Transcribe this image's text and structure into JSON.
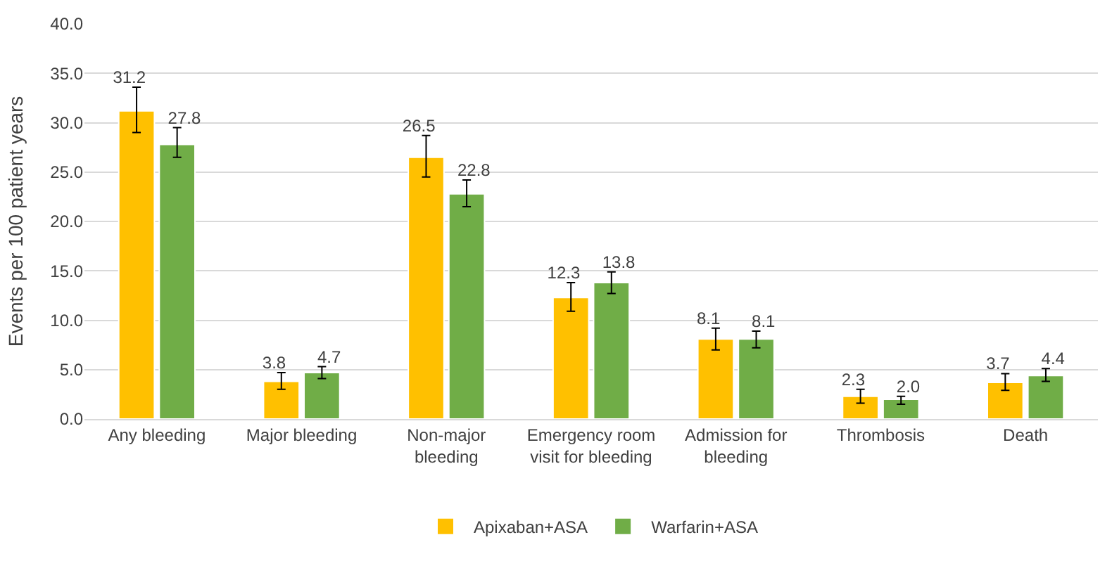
{
  "chart_data": {
    "type": "bar",
    "ylabel": "Events per 100 patient years",
    "categories": [
      "Any bleeding",
      "Major bleeding",
      "Non-major\nbleeding",
      "Emergency room\nvisit for bleeding",
      "Admission for\nbleeding",
      "Thrombosis",
      "Death"
    ],
    "series": [
      {
        "name": "Apixaban+ASA",
        "color": "#ffc000",
        "values": [
          31.2,
          3.8,
          26.5,
          12.3,
          8.1,
          2.3,
          3.7
        ],
        "value_labels": [
          "31.2",
          "3.8",
          "26.5",
          "12.3",
          "8.1",
          "2.3",
          "3.7"
        ],
        "errors": [
          [
            29.0,
            33.6
          ],
          [
            3.0,
            4.7
          ],
          [
            24.5,
            28.7
          ],
          [
            10.9,
            13.8
          ],
          [
            7.0,
            9.2
          ],
          [
            1.6,
            3.0
          ],
          [
            2.9,
            4.6
          ]
        ]
      },
      {
        "name": "Warfarin+ASA",
        "color": "#70ad47",
        "values": [
          27.8,
          4.7,
          22.8,
          13.8,
          8.1,
          2.0,
          4.4
        ],
        "value_labels": [
          "27.8",
          "4.7",
          "22.8",
          "13.8",
          "8.1",
          "2.0",
          "4.4"
        ],
        "errors": [
          [
            26.5,
            29.5
          ],
          [
            4.1,
            5.3
          ],
          [
            21.5,
            24.2
          ],
          [
            12.7,
            14.9
          ],
          [
            7.2,
            8.9
          ],
          [
            1.5,
            2.3
          ],
          [
            3.8,
            5.1
          ]
        ]
      }
    ],
    "ylim": [
      0,
      40
    ],
    "yticks": [
      {
        "value": 0,
        "label": "0.0"
      },
      {
        "value": 5,
        "label": "5.0"
      },
      {
        "value": 10,
        "label": "10.0"
      },
      {
        "value": 15,
        "label": "15.0"
      },
      {
        "value": 20,
        "label": "20.0"
      },
      {
        "value": 25,
        "label": "25.0"
      },
      {
        "value": 30,
        "label": "30.0"
      },
      {
        "value": 35,
        "label": "35.0"
      },
      {
        "value": 40,
        "label": "40.0"
      }
    ],
    "grid": "y",
    "legend": "bottom"
  }
}
